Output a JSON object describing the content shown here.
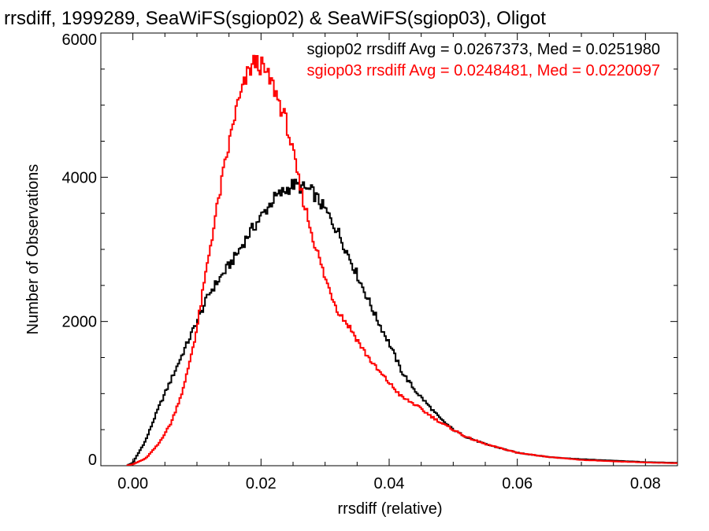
{
  "chart_data": {
    "type": "histogram",
    "title": "rrsdiff, 1999289, SeaWiFS(sgiop02) & SeaWiFS(sgiop03), Oligot",
    "xlabel": "rrsdiff (relative)",
    "ylabel": "Number of Observations",
    "xlim": [
      -0.005,
      0.085
    ],
    "ylim": [
      0,
      6000
    ],
    "x_ticks": [
      {
        "value": 0.0,
        "label": "0.00"
      },
      {
        "value": 0.02,
        "label": "0.02"
      },
      {
        "value": 0.04,
        "label": "0.04"
      },
      {
        "value": 0.06,
        "label": "0.06"
      },
      {
        "value": 0.08,
        "label": "0.08"
      }
    ],
    "y_ticks": [
      {
        "value": 0,
        "label": "0"
      },
      {
        "value": 2000,
        "label": "2000"
      },
      {
        "value": 4000,
        "label": "4000"
      },
      {
        "value": 6000,
        "label": "6000"
      }
    ],
    "grid": false,
    "legend_position": "top-right",
    "series": [
      {
        "name": "sgiop02",
        "color": "#000000",
        "legend": "sgiop02 rrsdiff Avg = 0.0267373, Med = 0.0251980",
        "points": [
          [
            -0.001,
            0
          ],
          [
            0.0,
            40
          ],
          [
            0.002,
            350
          ],
          [
            0.004,
            800
          ],
          [
            0.006,
            1200
          ],
          [
            0.008,
            1600
          ],
          [
            0.01,
            2000
          ],
          [
            0.012,
            2400
          ],
          [
            0.014,
            2650
          ],
          [
            0.016,
            2900
          ],
          [
            0.018,
            3200
          ],
          [
            0.02,
            3450
          ],
          [
            0.022,
            3700
          ],
          [
            0.024,
            3830
          ],
          [
            0.025,
            3900
          ],
          [
            0.026,
            3870
          ],
          [
            0.028,
            3800
          ],
          [
            0.03,
            3550
          ],
          [
            0.032,
            3250
          ],
          [
            0.034,
            2850
          ],
          [
            0.036,
            2450
          ],
          [
            0.038,
            2050
          ],
          [
            0.04,
            1700
          ],
          [
            0.042,
            1300
          ],
          [
            0.044,
            1050
          ],
          [
            0.046,
            850
          ],
          [
            0.048,
            650
          ],
          [
            0.05,
            500
          ],
          [
            0.052,
            400
          ],
          [
            0.055,
            300
          ],
          [
            0.06,
            180
          ],
          [
            0.065,
            120
          ],
          [
            0.07,
            90
          ],
          [
            0.075,
            70
          ],
          [
            0.08,
            50
          ],
          [
            0.085,
            40
          ]
        ]
      },
      {
        "name": "sgiop03",
        "color": "#ff0000",
        "legend": "sgiop03 rrsdiff Avg = 0.0248481, Med = 0.0220097",
        "points": [
          [
            -0.001,
            0
          ],
          [
            0.0,
            20
          ],
          [
            0.002,
            100
          ],
          [
            0.004,
            300
          ],
          [
            0.006,
            600
          ],
          [
            0.008,
            1100
          ],
          [
            0.01,
            1900
          ],
          [
            0.012,
            3000
          ],
          [
            0.014,
            4000
          ],
          [
            0.016,
            4900
          ],
          [
            0.018,
            5450
          ],
          [
            0.019,
            5600
          ],
          [
            0.02,
            5550
          ],
          [
            0.022,
            5250
          ],
          [
            0.024,
            4750
          ],
          [
            0.026,
            3900
          ],
          [
            0.028,
            3200
          ],
          [
            0.03,
            2600
          ],
          [
            0.032,
            2150
          ],
          [
            0.034,
            1900
          ],
          [
            0.036,
            1600
          ],
          [
            0.038,
            1350
          ],
          [
            0.04,
            1150
          ],
          [
            0.042,
            950
          ],
          [
            0.044,
            850
          ],
          [
            0.046,
            720
          ],
          [
            0.048,
            600
          ],
          [
            0.05,
            500
          ],
          [
            0.052,
            400
          ],
          [
            0.055,
            300
          ],
          [
            0.06,
            180
          ],
          [
            0.065,
            120
          ],
          [
            0.07,
            80
          ],
          [
            0.075,
            60
          ],
          [
            0.08,
            45
          ],
          [
            0.085,
            35
          ]
        ]
      }
    ]
  }
}
